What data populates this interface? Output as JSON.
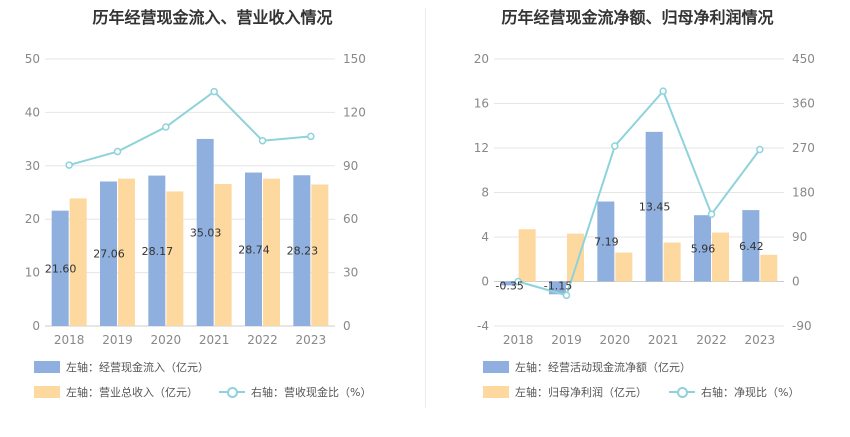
{
  "colors": {
    "bar1": "#8fb0de",
    "bar2": "#fdd9a0",
    "line": "#8ed3db",
    "grid": "#e6e6e6",
    "axis_text": "#888888"
  },
  "chart_data": [
    {
      "type": "bar",
      "title": "历年经营现金流入、营业收入情况",
      "categories": [
        "2018",
        "2019",
        "2020",
        "2021",
        "2022",
        "2023"
      ],
      "left_axis": {
        "ylim": [
          0,
          50
        ],
        "ticks": [
          "0",
          "10",
          "20",
          "30",
          "40",
          "50"
        ]
      },
      "right_axis": {
        "ylim": [
          0,
          150
        ],
        "ticks": [
          "0",
          "30",
          "60",
          "90",
          "120",
          "150"
        ]
      },
      "series": [
        {
          "name": "左轴：经营现金流入（亿元）",
          "type": "bar",
          "axis": "left",
          "values": [
            21.6,
            27.06,
            28.17,
            35.03,
            28.74,
            28.23
          ],
          "labels": [
            "21.60",
            "27.06",
            "28.17",
            "35.03",
            "28.74",
            "28.23"
          ]
        },
        {
          "name": "左轴：营业总收入（亿元）",
          "type": "bar",
          "axis": "left",
          "values": [
            23.9,
            27.6,
            25.2,
            26.6,
            27.6,
            26.5
          ]
        },
        {
          "name": "右轴：营收现金比（%）",
          "type": "line",
          "axis": "right",
          "values": [
            90.4,
            98.0,
            111.8,
            131.7,
            104.1,
            106.5
          ]
        }
      ]
    },
    {
      "type": "bar",
      "title": "历年经营现金流净额、归母净利润情况",
      "categories": [
        "2018",
        "2019",
        "2020",
        "2021",
        "2022",
        "2023"
      ],
      "left_axis": {
        "ylim": [
          -4,
          20
        ],
        "ticks": [
          "-4",
          "0",
          "4",
          "8",
          "12",
          "16",
          "20"
        ]
      },
      "right_axis": {
        "ylim": [
          -90,
          450
        ],
        "ticks": [
          "-90",
          "0",
          "90",
          "180",
          "270",
          "360",
          "450"
        ]
      },
      "series": [
        {
          "name": "左轴：经营活动现金流净额（亿元）",
          "type": "bar",
          "axis": "left",
          "values": [
            -0.35,
            -1.15,
            7.19,
            13.45,
            5.96,
            6.42
          ],
          "labels": [
            "-0.35",
            "-1.15",
            "7.19",
            "13.45",
            "5.96",
            "6.42"
          ]
        },
        {
          "name": "左轴：归母净利润（亿元）",
          "type": "bar",
          "axis": "left",
          "values": [
            4.7,
            4.3,
            2.6,
            3.5,
            4.4,
            2.4
          ]
        },
        {
          "name": "右轴：净现比（%）",
          "type": "line",
          "axis": "right",
          "values": [
            0,
            -28,
            274,
            385,
            136,
            267
          ]
        }
      ]
    }
  ]
}
